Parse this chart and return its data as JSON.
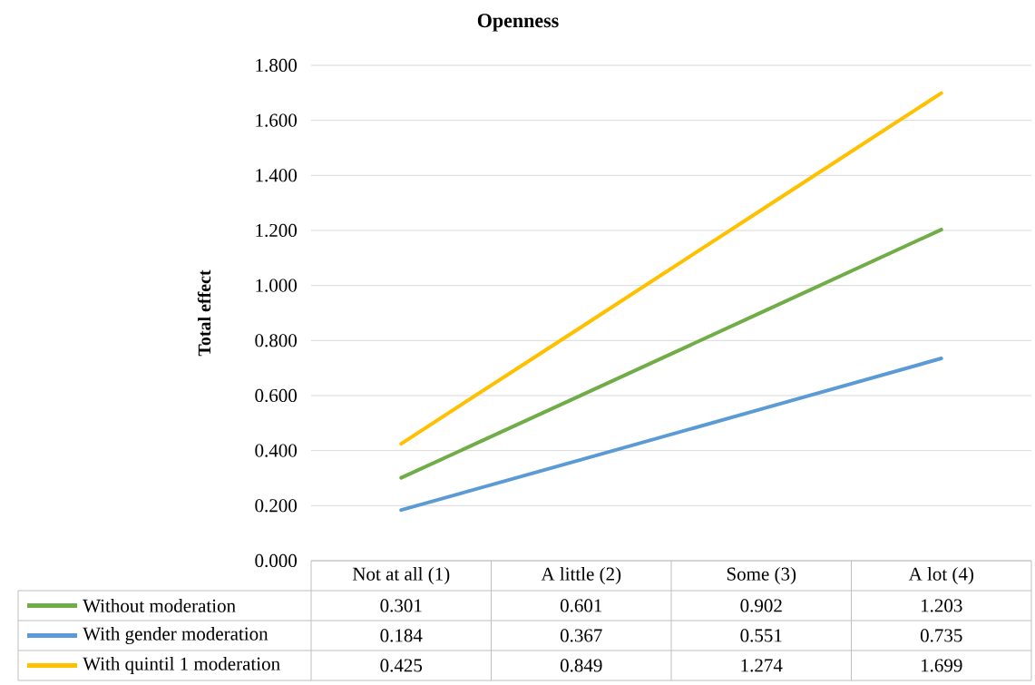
{
  "chart_data": {
    "type": "line",
    "title": "Openness",
    "ylabel": "Total effect",
    "categories": [
      "Not at all (1)",
      "A little (2)",
      "Some (3)",
      "A lot (4)"
    ],
    "series": [
      {
        "name": "Without moderation",
        "color": "#70ad47",
        "values": [
          0.301,
          0.601,
          0.902,
          1.203
        ]
      },
      {
        "name": "With gender moderation",
        "color": "#5b9bd5",
        "values": [
          0.184,
          0.367,
          0.551,
          0.735
        ]
      },
      {
        "name": "With quintil 1 moderation",
        "color": "#ffc000",
        "values": [
          0.425,
          0.849,
          1.274,
          1.699
        ]
      }
    ],
    "ylim": [
      0,
      1.8
    ],
    "yticks": [
      {
        "value": 0,
        "label": "0.000"
      },
      {
        "value": 0.2,
        "label": "0.200"
      },
      {
        "value": 0.4,
        "label": "0.400"
      },
      {
        "value": 0.6,
        "label": "0.600"
      },
      {
        "value": 0.8,
        "label": "0.800"
      },
      {
        "value": 1.0,
        "label": "1.000"
      },
      {
        "value": 1.2,
        "label": "1.200"
      },
      {
        "value": 1.4,
        "label": "1.400"
      },
      {
        "value": 1.6,
        "label": "1.600"
      },
      {
        "value": 1.8,
        "label": "1.800"
      }
    ],
    "grid": "y",
    "legend": "bottom",
    "data_labels": true,
    "marker": "none",
    "line_style": "solid"
  }
}
